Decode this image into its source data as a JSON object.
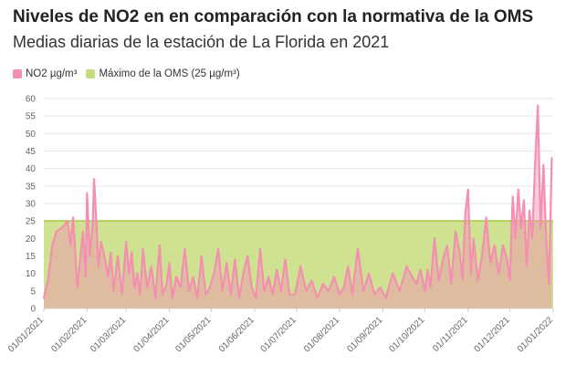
{
  "header": {
    "title": "Niveles de NO2 en en comparación con la normativa de la OMS",
    "subtitle": "Medias diarias de la estación de La Florida en 2021"
  },
  "legend": [
    {
      "label": "NO2 µg/m³",
      "color": "#f48fb1"
    },
    {
      "label": "Máximo de la OMS (25 µg/m³)",
      "color": "#c5dd7e"
    }
  ],
  "chart_data": {
    "type": "area",
    "title": "Niveles de NO2 en en comparación con la normativa de la OMS",
    "subtitle": "Medias diarias de la estación de La Florida en 2021",
    "xlabel": "",
    "ylabel": "",
    "ylim": [
      0,
      60
    ],
    "y_ticks": [
      "0",
      "5",
      "10",
      "15",
      "20",
      "25",
      "30",
      "35",
      "40",
      "45",
      "50",
      "55",
      "60"
    ],
    "x_ticks": [
      "01/01/2021",
      "01/02/2021",
      "01/03/2021",
      "01/04/2021",
      "01/05/2021",
      "01/06/2021",
      "01/07/2021",
      "01/08/2021",
      "01/09/2021",
      "01/10/2021",
      "01/11/2021",
      "01/12/2021",
      "01/01/2022"
    ],
    "grid": true,
    "legend_position": "top-left",
    "reference": {
      "name": "Máximo de la OMS (25 µg/m³)",
      "value": 25,
      "color": "#c5dd7e"
    },
    "series": [
      {
        "name": "NO2 µg/m³",
        "color": "#f48fb1",
        "x": [
          "01/01/2021",
          "04/01/2021",
          "07/01/2021",
          "10/01/2021",
          "14/01/2021",
          "18/01/2021",
          "20/01/2021",
          "22/01/2021",
          "25/01/2021",
          "27/01/2021",
          "29/01/2021",
          "31/01/2021",
          "01/02/2021",
          "03/02/2021",
          "05/02/2021",
          "06/02/2021",
          "08/02/2021",
          "09/02/2021",
          "11/02/2021",
          "14/02/2021",
          "16/02/2021",
          "18/02/2021",
          "20/02/2021",
          "23/02/2021",
          "26/02/2021",
          "01/03/2021",
          "03/03/2021",
          "05/03/2021",
          "07/03/2021",
          "09/03/2021",
          "11/03/2021",
          "13/03/2021",
          "16/03/2021",
          "19/03/2021",
          "22/03/2021",
          "25/03/2021",
          "27/03/2021",
          "30/03/2021",
          "01/04/2021",
          "03/04/2021",
          "06/04/2021",
          "09/04/2021",
          "12/04/2021",
          "15/04/2021",
          "18/04/2021",
          "21/04/2021",
          "24/04/2021",
          "27/04/2021",
          "30/04/2021",
          "03/05/2021",
          "06/05/2021",
          "09/05/2021",
          "12/05/2021",
          "15/05/2021",
          "18/05/2021",
          "21/05/2021",
          "24/05/2021",
          "27/05/2021",
          "30/05/2021",
          "02/06/2021",
          "05/06/2021",
          "08/06/2021",
          "11/06/2021",
          "14/06/2021",
          "17/06/2021",
          "20/06/2021",
          "23/06/2021",
          "26/06/2021",
          "30/06/2021",
          "04/07/2021",
          "08/07/2021",
          "12/07/2021",
          "16/07/2021",
          "20/07/2021",
          "24/07/2021",
          "28/07/2021",
          "01/08/2021",
          "04/08/2021",
          "07/08/2021",
          "10/08/2021",
          "14/08/2021",
          "18/08/2021",
          "22/08/2021",
          "26/08/2021",
          "30/08/2021",
          "03/09/2021",
          "08/09/2021",
          "13/09/2021",
          "18/09/2021",
          "22/09/2021",
          "25/09/2021",
          "28/09/2021",
          "01/10/2021",
          "03/10/2021",
          "05/10/2021",
          "08/10/2021",
          "11/10/2021",
          "14/10/2021",
          "17/10/2021",
          "20/10/2021",
          "23/10/2021",
          "26/10/2021",
          "28/10/2021",
          "30/10/2021",
          "01/11/2021",
          "03/11/2021",
          "05/11/2021",
          "08/11/2021",
          "11/11/2021",
          "14/11/2021",
          "17/11/2021",
          "20/11/2021",
          "23/11/2021",
          "26/11/2021",
          "29/11/2021",
          "01/12/2021",
          "03/12/2021",
          "05/12/2021",
          "07/12/2021",
          "09/12/2021",
          "11/12/2021",
          "13/12/2021",
          "15/12/2021",
          "17/12/2021",
          "19/12/2021",
          "21/12/2021",
          "23/12/2021",
          "25/12/2021",
          "27/12/2021",
          "29/12/2021",
          "31/12/2021"
        ],
        "values": [
          3,
          8,
          18,
          22,
          23,
          25,
          18,
          26,
          6,
          14,
          22,
          9,
          33,
          15,
          24,
          37,
          22,
          12,
          19,
          14,
          9,
          16,
          5,
          15,
          4,
          19,
          10,
          16,
          6,
          10,
          4,
          17,
          6,
          12,
          3,
          18,
          4,
          7,
          13,
          3,
          9,
          6,
          17,
          5,
          9,
          3,
          15,
          4,
          6,
          10,
          17,
          5,
          13,
          4,
          14,
          3,
          10,
          15,
          6,
          3,
          17,
          5,
          9,
          4,
          11,
          5,
          14,
          4,
          4,
          12,
          5,
          8,
          3,
          7,
          5,
          9,
          4,
          6,
          12,
          4,
          17,
          5,
          10,
          4,
          6,
          3,
          10,
          5,
          12,
          9,
          7,
          11,
          5,
          11,
          6,
          20,
          8,
          14,
          18,
          7,
          22,
          16,
          8,
          27,
          34,
          10,
          20,
          8,
          15,
          26,
          13,
          18,
          10,
          18,
          14,
          8,
          32,
          20,
          34,
          23,
          31,
          12,
          28,
          20,
          41,
          58,
          23,
          41,
          20,
          7,
          43
        ]
      }
    ]
  }
}
